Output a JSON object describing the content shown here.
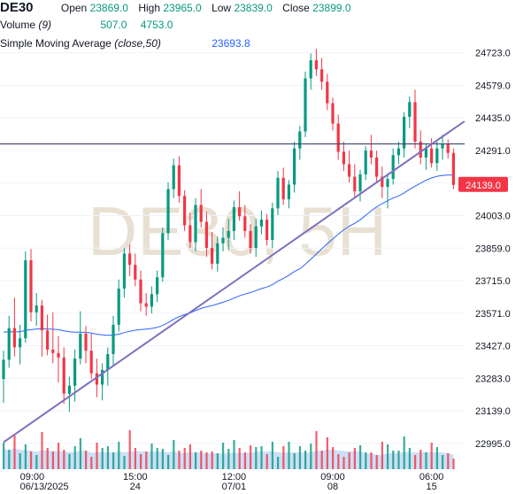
{
  "legend": {
    "symbol": "DE30",
    "open_label": "Open",
    "open": "23869.0",
    "high_label": "High",
    "high": "23965.0",
    "low_label": "Low",
    "low": "23839.0",
    "close_label": "Close",
    "close": "23899.0",
    "volume_label": "Volume",
    "volume_param": "(9)",
    "volume": "507.0",
    "volume_ma": "4753.0",
    "sma_label": "Simple Moving Average",
    "sma_param": "(close,50)",
    "sma": "23693.8"
  },
  "watermark": "DE30, 5H",
  "last_price": "24139.0",
  "colors": {
    "up": "#089981",
    "down": "#f23645",
    "ma": "#2962ff",
    "trendline": "#7e6fbf",
    "hline": "#3f4570",
    "volume_area": "#c7dcf5"
  },
  "chart_data": {
    "type": "candlestick",
    "y_ticks": [
      22995.0,
      23139.0,
      23283.0,
      23427.0,
      23571.0,
      23715.0,
      23859.0,
      24003.0,
      24147.0,
      24291.0,
      24435.0,
      24579.0,
      24723.0
    ],
    "y_tick_labels": [
      "22995.0",
      "23139.0",
      "23283.0",
      "23427.0",
      "23571.0",
      "23715.0",
      "23859.0",
      "24003.0",
      "24291.0",
      "24435.0",
      "24579.0",
      "24723.0"
    ],
    "ylim": [
      22920,
      24800
    ],
    "x_tick_labels": [
      {
        "index": 3,
        "top": "09:00",
        "bottom": "06/13/2025"
      },
      {
        "index": 24,
        "top": "15:00",
        "bottom": "24"
      },
      {
        "index": 42,
        "top": "12:00",
        "bottom": "07/01"
      },
      {
        "index": 60,
        "top": "09:00",
        "bottom": "08"
      },
      {
        "index": 78,
        "top": "06:00",
        "bottom": "15"
      }
    ],
    "candles": [
      [
        23280,
        23405,
        23175,
        23365
      ],
      [
        23365,
        23560,
        23330,
        23505
      ],
      [
        23505,
        23640,
        23380,
        23420
      ],
      [
        23420,
        23520,
        23345,
        23460
      ],
      [
        23460,
        23845,
        23440,
        23805
      ],
      [
        23805,
        23855,
        23535,
        23575
      ],
      [
        23575,
        23660,
        23515,
        23605
      ],
      [
        23605,
        23630,
        23380,
        23495
      ],
      [
        23495,
        23565,
        23385,
        23410
      ],
      [
        23410,
        23575,
        23350,
        23395
      ],
      [
        23395,
        23470,
        23265,
        23375
      ],
      [
        23375,
        23420,
        23170,
        23215
      ],
      [
        23215,
        23290,
        23135,
        23250
      ],
      [
        23250,
        23410,
        23180,
        23370
      ],
      [
        23370,
        23580,
        23345,
        23480
      ],
      [
        23480,
        23515,
        23350,
        23405
      ],
      [
        23405,
        23480,
        23280,
        23305
      ],
      [
        23305,
        23370,
        23200,
        23255
      ],
      [
        23255,
        23350,
        23185,
        23320
      ],
      [
        23320,
        23420,
        23250,
        23390
      ],
      [
        23390,
        23560,
        23340,
        23520
      ],
      [
        23520,
        23720,
        23490,
        23680
      ],
      [
        23680,
        23860,
        23640,
        23835
      ],
      [
        23835,
        23875,
        23735,
        23785
      ],
      [
        23785,
        23835,
        23690,
        23720
      ],
      [
        23720,
        23760,
        23580,
        23615
      ],
      [
        23615,
        23660,
        23560,
        23600
      ],
      [
        23600,
        23690,
        23570,
        23655
      ],
      [
        23655,
        23760,
        23620,
        23730
      ],
      [
        23730,
        23950,
        23710,
        23925
      ],
      [
        23925,
        24150,
        23895,
        24120
      ],
      [
        24120,
        24255,
        24080,
        24225
      ],
      [
        24225,
        24265,
        24060,
        24090
      ],
      [
        24090,
        24115,
        23935,
        23960
      ],
      [
        23960,
        24015,
        23860,
        23885
      ],
      [
        23885,
        24080,
        23845,
        24050
      ],
      [
        24050,
        24120,
        23950,
        23975
      ],
      [
        23975,
        24020,
        23820,
        23860
      ],
      [
        23860,
        23930,
        23765,
        23790
      ],
      [
        23790,
        23910,
        23755,
        23880
      ],
      [
        23880,
        23950,
        23845,
        23905
      ],
      [
        23905,
        23990,
        23850,
        23935
      ],
      [
        23935,
        24070,
        23895,
        24040
      ],
      [
        24040,
        24110,
        23980,
        24000
      ],
      [
        24000,
        24050,
        23905,
        23935
      ],
      [
        23935,
        23965,
        23835,
        23860
      ],
      [
        23860,
        23990,
        23820,
        23955
      ],
      [
        23955,
        24025,
        23920,
        23985
      ],
      [
        23985,
        24010,
        23870,
        23895
      ],
      [
        23895,
        24060,
        23860,
        24035
      ],
      [
        24035,
        24200,
        24005,
        24170
      ],
      [
        24170,
        24215,
        24050,
        24075
      ],
      [
        24075,
        24160,
        24035,
        24140
      ],
      [
        24140,
        24330,
        24105,
        24300
      ],
      [
        24300,
        24400,
        24250,
        24375
      ],
      [
        24375,
        24640,
        24350,
        24610
      ],
      [
        24610,
        24720,
        24560,
        24690
      ],
      [
        24690,
        24740,
        24620,
        24650
      ],
      [
        24650,
        24700,
        24560,
        24595
      ],
      [
        24595,
        24630,
        24470,
        24500
      ],
      [
        24500,
        24525,
        24380,
        24410
      ],
      [
        24410,
        24450,
        24250,
        24285
      ],
      [
        24285,
        24330,
        24200,
        24230
      ],
      [
        24230,
        24290,
        24150,
        24175
      ],
      [
        24175,
        24230,
        24080,
        24110
      ],
      [
        24110,
        24205,
        24065,
        24185
      ],
      [
        24185,
        24310,
        24160,
        24290
      ],
      [
        24290,
        24360,
        24230,
        24260
      ],
      [
        24260,
        24290,
        24150,
        24175
      ],
      [
        24175,
        24220,
        24080,
        24130
      ],
      [
        24130,
        24190,
        24035,
        24165
      ],
      [
        24165,
        24300,
        24140,
        24270
      ],
      [
        24270,
        24330,
        24230,
        24300
      ],
      [
        24300,
        24460,
        24260,
        24440
      ],
      [
        24440,
        24530,
        24390,
        24505
      ],
      [
        24505,
        24560,
        24300,
        24330
      ],
      [
        24330,
        24380,
        24230,
        24260
      ],
      [
        24260,
        24320,
        24205,
        24300
      ],
      [
        24300,
        24345,
        24215,
        24235
      ],
      [
        24235,
        24330,
        24200,
        24300
      ],
      [
        24300,
        24360,
        24250,
        24320
      ],
      [
        24320,
        24340,
        24255,
        24280
      ],
      [
        24280,
        24300,
        24120,
        24139
      ]
    ],
    "volume": [
      30,
      22,
      38,
      18,
      28,
      20,
      16,
      42,
      24,
      20,
      30,
      22,
      17,
      26,
      35,
      21,
      14,
      30,
      24,
      26,
      19,
      31,
      15,
      44,
      24,
      17,
      20,
      29,
      24,
      23,
      16,
      33,
      21,
      24,
      28,
      19,
      21,
      19,
      20,
      18,
      30,
      23,
      33,
      24,
      19,
      27,
      25,
      26,
      17,
      31,
      14,
      26,
      31,
      18,
      26,
      21,
      29,
      43,
      21,
      36,
      25,
      17,
      14,
      19,
      24,
      27,
      19,
      19,
      16,
      31,
      28,
      21,
      21,
      37,
      24,
      16,
      22,
      19,
      30,
      25,
      16,
      18,
      12
    ],
    "hline": 24320,
    "trendline": [
      [
        0,
        23000
      ],
      [
        84,
        24420
      ]
    ]
  }
}
